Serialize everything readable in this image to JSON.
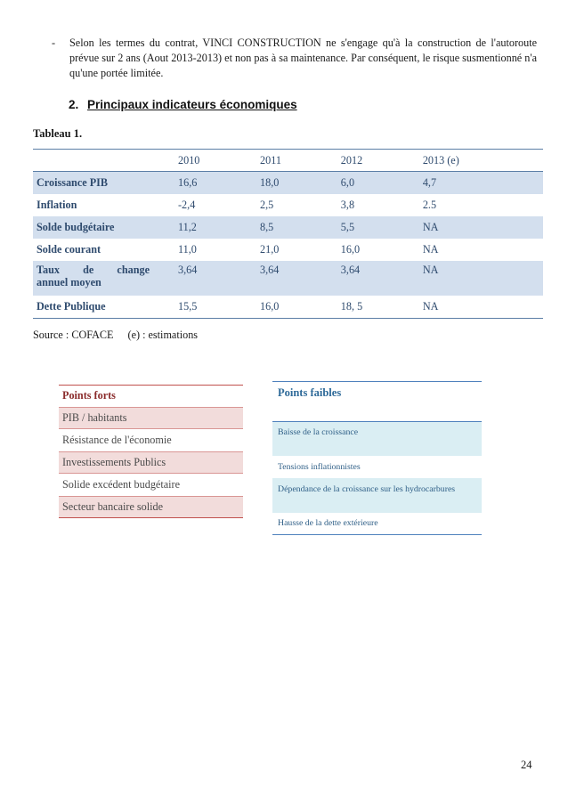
{
  "bullet": {
    "dash": "-",
    "text": "Selon les termes du contrat,  VINCI CONSTRUCTION ne  s'engage qu'à la construction de l'autoroute prévue sur 2 ans (Aout 2013-2013) et non pas à sa maintenance. Par conséquent, le risque susmentionné n'a qu'une portée limitée."
  },
  "section": {
    "number": "2.",
    "title": "Principaux indicateurs économiques"
  },
  "table_title": "Tableau 1.",
  "table": {
    "columns": [
      "2010",
      "2011",
      "2012",
      "2013 (e)"
    ],
    "rows": [
      {
        "label": "Croissance PIB",
        "values": [
          "16,6",
          "18,0",
          "6,0",
          "4,7"
        ]
      },
      {
        "label": "Inflation",
        "values": [
          "-2,4",
          "2,5",
          "3,8",
          "2.5"
        ]
      },
      {
        "label": "Solde budgétaire",
        "values": [
          "11,2",
          "8,5",
          "5,5",
          "NA"
        ]
      },
      {
        "label": "Solde courant",
        "values": [
          "11,0",
          "21,0",
          "16,0",
          "NA"
        ]
      },
      {
        "label_line1": "Taux de change",
        "label_line2": "annuel moyen",
        "values": [
          "3,64",
          "3,64",
          "3,64",
          "NA"
        ]
      },
      {
        "label": "Dette Publique",
        "values": [
          "15,5",
          "16,0",
          "18, 5",
          "NA"
        ]
      }
    ]
  },
  "source": {
    "left": "Source : COFACE",
    "right": "(e) : estimations"
  },
  "strengths": {
    "title": "Points forts",
    "items": [
      "PIB / habitants",
      "Résistance de l'économie",
      "Investissements Publics",
      "Solide excédent budgétaire",
      "Secteur bancaire solide"
    ]
  },
  "weaknesses": {
    "title": "Points faibles",
    "items": [
      "Baisse de la croissance",
      "Tensions inflationnistes",
      "Dépendance de la croissance sur les hydrocarbures",
      "Hausse de la dette extérieure"
    ]
  },
  "page_number": "24"
}
